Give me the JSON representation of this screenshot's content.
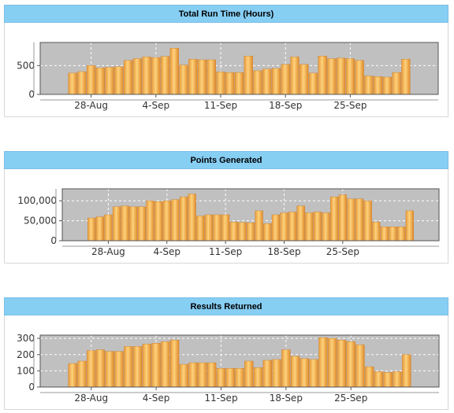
{
  "charts": [
    {
      "header": "Total Run Time (Hours)",
      "chart_data": {
        "type": "bar",
        "title": "Total Run Time (Hours)",
        "xlabel": "",
        "ylabel": "",
        "x_tick_labels": [
          "28-Aug",
          "4-Sep",
          "11-Sep",
          "18-Sep",
          "25-Sep"
        ],
        "y_ticks": [
          0,
          500
        ],
        "y_tick_labels": [
          "0",
          "500"
        ],
        "ylim": [
          0,
          900
        ],
        "grid": true,
        "values": [
          370,
          395,
          500,
          460,
          470,
          480,
          590,
          620,
          650,
          640,
          660,
          800,
          510,
          610,
          600,
          600,
          390,
          380,
          380,
          665,
          410,
          440,
          450,
          520,
          650,
          520,
          370,
          665,
          620,
          630,
          620,
          590,
          320,
          310,
          300,
          380,
          610
        ]
      }
    },
    {
      "header": "Points Generated",
      "chart_data": {
        "type": "bar",
        "title": "Points Generated",
        "xlabel": "",
        "ylabel": "",
        "x_tick_labels": [
          "28-Aug",
          "4-Sep",
          "11-Sep",
          "18-Sep",
          "25-Sep"
        ],
        "y_ticks": [
          0,
          50000,
          100000
        ],
        "y_tick_labels": [
          "0",
          "50,000",
          "100,000"
        ],
        "ylim": [
          0,
          130000
        ],
        "grid": true,
        "values": [
          57000,
          60000,
          65000,
          85000,
          87000,
          85000,
          85000,
          100000,
          98000,
          100000,
          103000,
          110000,
          117000,
          62000,
          65000,
          65000,
          65000,
          47000,
          46000,
          45000,
          75000,
          43000,
          65000,
          70000,
          72000,
          87000,
          70000,
          72000,
          70000,
          110000,
          115000,
          105000,
          105000,
          100000,
          47000,
          35000,
          35000,
          35000,
          75000
        ]
      }
    },
    {
      "header": "Results Returned",
      "chart_data": {
        "type": "bar",
        "title": "Results Returned",
        "xlabel": "",
        "ylabel": "",
        "x_tick_labels": [
          "28-Aug",
          "4-Sep",
          "11-Sep",
          "18-Sep",
          "25-Sep"
        ],
        "y_ticks": [
          0,
          100,
          200,
          300
        ],
        "y_tick_labels": [
          "0",
          "100",
          "200",
          "300"
        ],
        "ylim": [
          0,
          320
        ],
        "grid": true,
        "values": [
          145,
          160,
          225,
          230,
          220,
          220,
          250,
          250,
          265,
          270,
          280,
          290,
          140,
          150,
          150,
          150,
          115,
          115,
          115,
          160,
          120,
          165,
          170,
          230,
          190,
          175,
          170,
          305,
          300,
          290,
          280,
          260,
          125,
          95,
          90,
          95,
          200
        ]
      }
    }
  ]
}
